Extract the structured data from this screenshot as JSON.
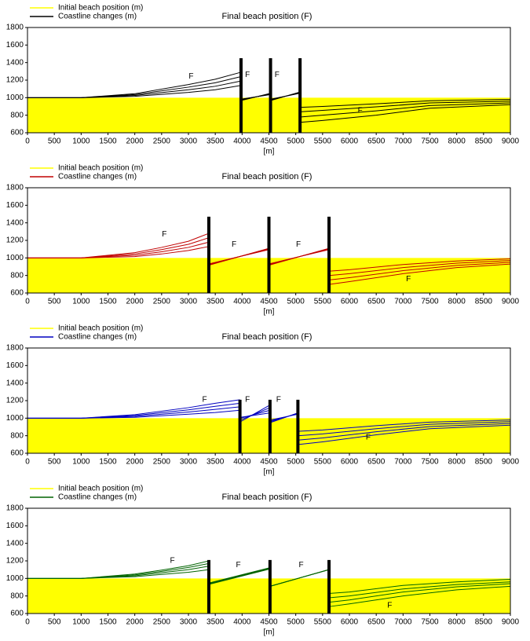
{
  "chart_data": [
    {
      "type": "line",
      "title": "Final beach position (F)",
      "xlabel": "[m]",
      "xlim": [
        0,
        9000
      ],
      "ylim": [
        600,
        1800
      ],
      "xticks": [
        0,
        500,
        1000,
        1500,
        2000,
        2500,
        3000,
        3500,
        4000,
        4500,
        5000,
        5500,
        6000,
        6500,
        7000,
        7500,
        8000,
        8500,
        9000
      ],
      "yticks": [
        600,
        800,
        1000,
        1200,
        1400,
        1600,
        1800
      ],
      "initial_beach": {
        "name": "Initial beach position (m)",
        "color": "#ffff00",
        "x": [
          0,
          9000
        ],
        "values": [
          1000,
          1000
        ]
      },
      "coastline": {
        "name": "Coastline changes (m)",
        "color": "#000000",
        "x": [
          0,
          1000,
          2000,
          3000,
          3500,
          3980,
          3990,
          4000,
          4530,
          4540,
          4550,
          5080,
          5090,
          5100,
          5500,
          6500,
          7500,
          9000
        ],
        "lines": [
          [
            1000,
            1000,
            1045,
            1150,
            1210,
            1290,
            null,
            970,
            1050,
            null,
            970,
            1065,
            null,
            720,
            740,
            800,
            880,
            920
          ],
          [
            1000,
            1000,
            1035,
            1120,
            1170,
            1240,
            null,
            975,
            1045,
            null,
            975,
            1060,
            null,
            780,
            800,
            850,
            910,
            940
          ],
          [
            1000,
            1000,
            1025,
            1090,
            1130,
            1190,
            null,
            980,
            1040,
            null,
            980,
            1055,
            null,
            840,
            855,
            895,
            940,
            960
          ],
          [
            1000,
            1000,
            1015,
            1060,
            1090,
            1140,
            null,
            985,
            1035,
            null,
            985,
            1050,
            null,
            890,
            900,
            930,
            965,
            980
          ]
        ]
      },
      "groins": {
        "color": "#000000",
        "x": [
          3980,
          4530,
          5080
        ],
        "top": 1450
      },
      "annotations": [
        {
          "text": "F",
          "x": 3050,
          "y": 1240
        },
        {
          "text": "F",
          "x": 4100,
          "y": 1260
        },
        {
          "text": "F",
          "x": 4650,
          "y": 1260
        },
        {
          "text": "F",
          "x": 6200,
          "y": 850
        }
      ]
    },
    {
      "type": "line",
      "title": "Final beach position (F)",
      "xlabel": "[m]",
      "xlim": [
        0,
        9000
      ],
      "ylim": [
        600,
        1800
      ],
      "xticks": [
        0,
        500,
        1000,
        1500,
        2000,
        2500,
        3000,
        3500,
        4000,
        4500,
        5000,
        5500,
        6000,
        6500,
        7000,
        7500,
        8000,
        8500,
        9000
      ],
      "yticks": [
        600,
        800,
        1000,
        1200,
        1400,
        1600,
        1800
      ],
      "initial_beach": {
        "name": "Initial beach position (m)",
        "color": "#ffff00",
        "x": [
          0,
          9000
        ],
        "values": [
          1000,
          1000
        ]
      },
      "coastline": {
        "name": "Coastline changes (m)",
        "color": "#c00000",
        "x": [
          0,
          1000,
          2000,
          2500,
          3000,
          3380,
          3390,
          3400,
          4500,
          4510,
          4520,
          5620,
          5630,
          5640,
          6000,
          7000,
          8000,
          9000
        ],
        "lines": [
          [
            1000,
            1000,
            1060,
            1120,
            1190,
            1280,
            null,
            920,
            1110,
            null,
            920,
            1110,
            null,
            700,
            730,
            820,
            890,
            930
          ],
          [
            1000,
            1000,
            1045,
            1095,
            1155,
            1230,
            null,
            925,
            1105,
            null,
            925,
            1105,
            null,
            750,
            775,
            855,
            915,
            950
          ],
          [
            1000,
            1000,
            1030,
            1070,
            1120,
            1180,
            null,
            930,
            1100,
            null,
            930,
            1100,
            null,
            800,
            820,
            890,
            940,
            970
          ],
          [
            1000,
            1000,
            1015,
            1045,
            1085,
            1130,
            null,
            935,
            1095,
            null,
            935,
            1095,
            null,
            850,
            865,
            925,
            965,
            990
          ]
        ]
      },
      "groins": {
        "color": "#000000",
        "x": [
          3380,
          4500,
          5620
        ],
        "top": 1470
      },
      "annotations": [
        {
          "text": "F",
          "x": 2550,
          "y": 1270
        },
        {
          "text": "F",
          "x": 3850,
          "y": 1150
        },
        {
          "text": "F",
          "x": 5050,
          "y": 1150
        },
        {
          "text": "F",
          "x": 7100,
          "y": 760
        }
      ]
    },
    {
      "type": "line",
      "title": "Final beach position (F)",
      "xlabel": "[m]",
      "xlim": [
        0,
        9000
      ],
      "ylim": [
        600,
        1800
      ],
      "xticks": [
        0,
        500,
        1000,
        1500,
        2000,
        2500,
        3000,
        3500,
        4000,
        4500,
        5000,
        5500,
        6000,
        6500,
        7000,
        7500,
        8000,
        8500,
        9000
      ],
      "yticks": [
        600,
        800,
        1000,
        1200,
        1400,
        1600,
        1800
      ],
      "initial_beach": {
        "name": "Initial beach position (m)",
        "color": "#ffff00",
        "x": [
          0,
          9000
        ],
        "values": [
          1000,
          1000
        ]
      },
      "coastline": {
        "name": "Coastline changes (m)",
        "color": "#0000c0",
        "x": [
          0,
          1000,
          2000,
          3000,
          3500,
          3960,
          3965,
          3970,
          4520,
          4525,
          4530,
          5040,
          5045,
          5050,
          5500,
          6500,
          7500,
          9000
        ],
        "lines": [
          [
            1000,
            1000,
            1040,
            1120,
            1170,
            1210,
            null,
            960,
            1150,
            null,
            950,
            1060,
            null,
            700,
            730,
            810,
            880,
            920
          ],
          [
            1000,
            1000,
            1030,
            1095,
            1135,
            1170,
            null,
            980,
            1120,
            null,
            960,
            1055,
            null,
            750,
            775,
            845,
            905,
            940
          ],
          [
            1000,
            1000,
            1020,
            1070,
            1100,
            1130,
            null,
            1000,
            1090,
            null,
            970,
            1050,
            null,
            800,
            820,
            880,
            930,
            960
          ],
          [
            1000,
            1000,
            1010,
            1045,
            1065,
            1090,
            null,
            1010,
            1060,
            null,
            980,
            1045,
            null,
            850,
            865,
            915,
            955,
            980
          ]
        ]
      },
      "groins": {
        "color": "#000000",
        "x": [
          3960,
          4520,
          5040
        ],
        "top": 1210
      },
      "annotations": [
        {
          "text": "F",
          "x": 3300,
          "y": 1210
        },
        {
          "text": "F",
          "x": 4100,
          "y": 1210
        },
        {
          "text": "F",
          "x": 4680,
          "y": 1210
        },
        {
          "text": "F",
          "x": 6350,
          "y": 780
        }
      ]
    },
    {
      "type": "line",
      "title": "Final beach position (F)",
      "xlabel": "[m]",
      "xlim": [
        0,
        9000
      ],
      "ylim": [
        600,
        1800
      ],
      "xticks": [
        0,
        500,
        1000,
        1500,
        2000,
        2500,
        3000,
        3500,
        4000,
        4500,
        5000,
        5500,
        6000,
        6500,
        7000,
        7500,
        8000,
        8500,
        9000
      ],
      "yticks": [
        600,
        800,
        1000,
        1200,
        1400,
        1600,
        1800
      ],
      "initial_beach": {
        "name": "Initial beach position (m)",
        "color": "#ffff00",
        "x": [
          0,
          9000
        ],
        "values": [
          1000,
          1000
        ]
      },
      "coastline": {
        "name": "Coastline changes (m)",
        "color": "#006400",
        "x": [
          0,
          1000,
          2000,
          2500,
          3000,
          3380,
          3390,
          3400,
          4500,
          4510,
          4520,
          5620,
          5630,
          5640,
          6000,
          7000,
          8000,
          9000
        ],
        "lines": [
          [
            1000,
            1000,
            1050,
            1095,
            1145,
            1200,
            null,
            950,
            1120,
            null,
            910,
            1100,
            null,
            680,
            710,
            800,
            870,
            910
          ],
          [
            1000,
            1000,
            1040,
            1080,
            1125,
            1170,
            null,
            945,
            1115,
            null,
            910,
            1100,
            null,
            730,
            755,
            845,
            905,
            940
          ],
          [
            1000,
            1000,
            1030,
            1065,
            1100,
            1140,
            null,
            940,
            1110,
            null,
            910,
            1100,
            null,
            780,
            800,
            880,
            930,
            960
          ],
          [
            1000,
            1000,
            1020,
            1045,
            1070,
            1100,
            null,
            935,
            1105,
            null,
            910,
            1100,
            null,
            830,
            845,
            920,
            960,
            990
          ]
        ]
      },
      "groins": {
        "color": "#000000",
        "x": [
          3380,
          4520,
          5620
        ],
        "top": 1210
      },
      "annotations": [
        {
          "text": "F",
          "x": 2700,
          "y": 1200
        },
        {
          "text": "F",
          "x": 3930,
          "y": 1150
        },
        {
          "text": "F",
          "x": 5100,
          "y": 1150
        },
        {
          "text": "F",
          "x": 6750,
          "y": 690
        }
      ]
    }
  ]
}
